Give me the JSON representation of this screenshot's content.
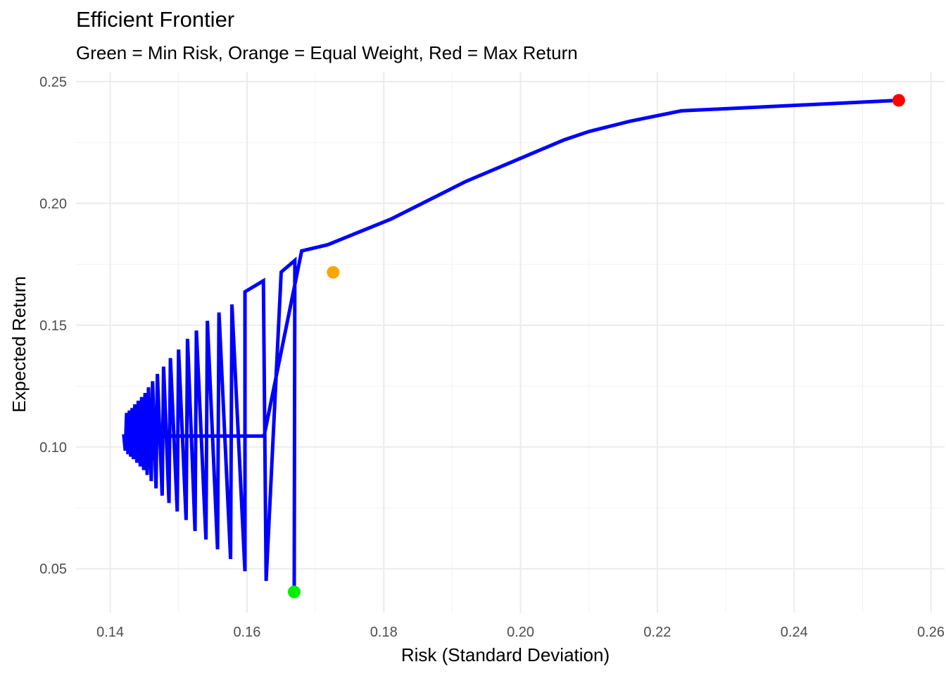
{
  "chart_data": {
    "type": "line",
    "title": "Efficient Frontier",
    "subtitle": "Green = Min Risk, Orange = Equal Weight, Red = Max Return",
    "xlabel": "Risk (Standard Deviation)",
    "ylabel": "Expected Return",
    "xlim": [
      0.135,
      0.262
    ],
    "ylim": [
      0.032,
      0.254
    ],
    "x_ticks": [
      "0.14",
      "0.16",
      "0.18",
      "0.20",
      "0.22",
      "0.24",
      "0.26"
    ],
    "y_ticks": [
      "0.05",
      "0.10",
      "0.15",
      "0.20",
      "0.25"
    ],
    "x_tick_values": [
      0.14,
      0.16,
      0.18,
      0.2,
      0.22,
      0.24,
      0.26
    ],
    "y_tick_values": [
      0.05,
      0.1,
      0.15,
      0.2,
      0.25
    ],
    "grid": true,
    "line_color": "#0000ff",
    "series": [
      {
        "x": [
          0.1669,
          0.167,
          0.165,
          0.1628,
          0.1624,
          0.1597,
          0.1597,
          0.1578,
          0.1576,
          0.1559,
          0.1557,
          0.1542,
          0.154,
          0.1526,
          0.1524,
          0.1513,
          0.1511,
          0.15,
          0.1498,
          0.1488,
          0.1486,
          0.1478,
          0.1476,
          0.1469,
          0.1467,
          0.1462,
          0.146,
          0.1456,
          0.1454,
          0.1451,
          0.1449,
          0.1446,
          0.1444,
          0.1441,
          0.1439,
          0.1436,
          0.1434,
          0.1432,
          0.143,
          0.1428,
          0.1426,
          0.1424,
          0.1422,
          0.142,
          0.1422,
          0.1427,
          0.1443,
          0.147,
          0.152,
          0.1577,
          0.1625,
          0.168,
          0.1718,
          0.181,
          0.192,
          0.2063,
          0.21,
          0.216,
          0.2235,
          0.2553
        ],
        "y": [
          0.0405,
          0.1766,
          0.1718,
          0.045,
          0.1682,
          0.1637,
          0.049,
          0.1585,
          0.054,
          0.1552,
          0.058,
          0.1518,
          0.062,
          0.1478,
          0.0655,
          0.1444,
          0.07,
          0.14,
          0.0735,
          0.1365,
          0.077,
          0.133,
          0.08,
          0.13,
          0.083,
          0.127,
          0.086,
          0.1245,
          0.0885,
          0.1222,
          0.0905,
          0.1205,
          0.092,
          0.119,
          0.0935,
          0.1175,
          0.095,
          0.116,
          0.096,
          0.115,
          0.097,
          0.114,
          0.0985,
          0.1045,
          0.1045,
          0.1045,
          0.1045,
          0.1045,
          0.1045,
          0.1045,
          0.1045,
          0.1805,
          0.183,
          0.1935,
          0.209,
          0.226,
          0.2295,
          0.2337,
          0.238,
          0.2423
        ]
      }
    ],
    "points": [
      {
        "x": 0.1669,
        "y": 0.0405,
        "color": "#00ee00"
      },
      {
        "x": 0.1726,
        "y": 0.1717,
        "color": "#ffa500"
      },
      {
        "x": 0.2553,
        "y": 0.2423,
        "color": "#ff0000"
      }
    ]
  }
}
